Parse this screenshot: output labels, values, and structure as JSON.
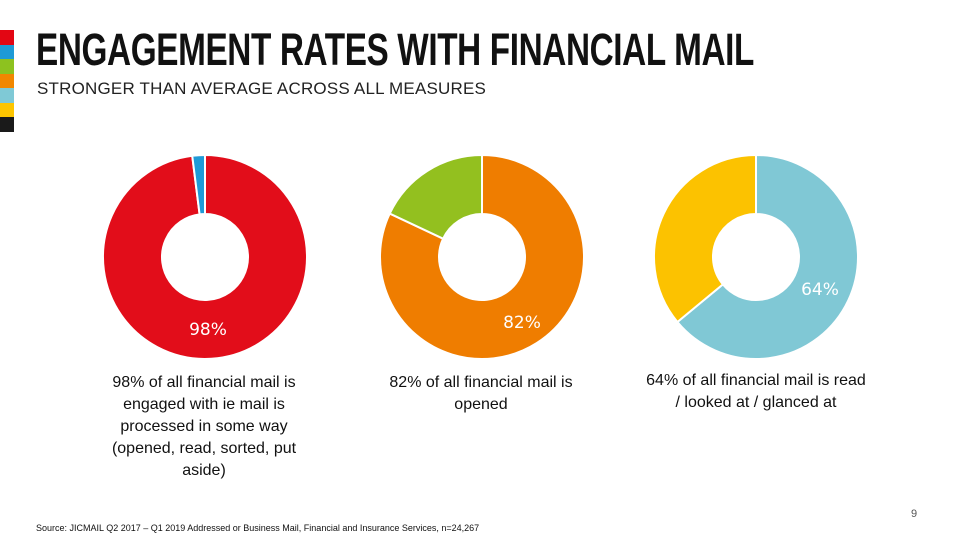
{
  "slide": {
    "title": "ENGAGEMENT RATES WITH FINANCIAL MAIL",
    "subtitle": "STRONGER THAN AVERAGE ACROSS ALL MEASURES",
    "source": "Source: JICMAIL Q2 2017 – Q1 2019 Addressed or Business Mail, Financial and Insurance Services, n=24,267",
    "page_number": "9",
    "strip_colors": [
      "#e30613",
      "#1e9ad6",
      "#8dc21f",
      "#f18700",
      "#7fc9d6",
      "#fdc500",
      "#1a1a1a"
    ]
  },
  "chart_data": [
    {
      "type": "pie",
      "slices": [
        {
          "value": 98,
          "color": "#e20d1a"
        },
        {
          "value": 2,
          "color": "#1f9ad7"
        }
      ],
      "label": "98%",
      "description": "98% of all financial mail is engaged with ie mail is processed in some way (opened, read, sorted, put aside)"
    },
    {
      "type": "pie",
      "slices": [
        {
          "value": 82,
          "color": "#ef7d00"
        },
        {
          "value": 18,
          "color": "#93c01f"
        }
      ],
      "label": "82%",
      "description": "82% of all financial mail is opened"
    },
    {
      "type": "pie",
      "slices": [
        {
          "value": 64,
          "color": "#80c8d5"
        },
        {
          "value": 36,
          "color": "#fcc200"
        }
      ],
      "label": "64%",
      "description": "64% of all financial mail is read / looked at / glanced at"
    }
  ]
}
